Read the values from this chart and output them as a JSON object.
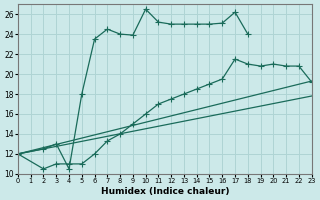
{
  "xlabel": "Humidex (Indice chaleur)",
  "xlim": [
    0,
    23
  ],
  "ylim": [
    10,
    27
  ],
  "yticks": [
    10,
    12,
    14,
    16,
    18,
    20,
    22,
    24,
    26
  ],
  "xticks": [
    0,
    1,
    2,
    3,
    4,
    5,
    6,
    7,
    8,
    9,
    10,
    11,
    12,
    13,
    14,
    15,
    16,
    17,
    18,
    19,
    20,
    21,
    22,
    23
  ],
  "background_color": "#cce9e9",
  "grid_color": "#afd4d4",
  "line_color": "#1a6b5a",
  "line1_x": [
    0,
    2,
    3,
    4,
    5,
    6,
    7,
    8,
    9,
    10,
    11,
    12,
    13,
    14,
    15,
    16,
    17,
    18
  ],
  "line1_y": [
    12,
    12.5,
    13,
    10.5,
    18,
    23.5,
    24.5,
    24,
    23.9,
    26.5,
    25.2,
    25,
    25,
    25,
    25,
    25.1,
    26.2,
    24
  ],
  "line2_x": [
    0,
    2,
    3,
    4,
    5,
    6,
    7,
    8,
    9,
    10,
    11,
    12,
    13,
    14,
    15,
    16,
    17,
    18,
    19,
    20,
    21,
    22,
    23
  ],
  "line2_y": [
    12,
    10.5,
    11,
    11,
    11,
    12,
    13.3,
    14,
    15,
    16,
    17,
    17.5,
    18,
    18.5,
    19,
    19.5,
    21.5,
    21,
    20.8,
    21,
    20.8,
    20.8,
    19.2
  ],
  "line3_x": [
    0,
    23
  ],
  "line3_y": [
    12,
    19.3
  ],
  "line4_x": [
    0,
    23
  ],
  "line4_y": [
    12,
    17.8
  ]
}
